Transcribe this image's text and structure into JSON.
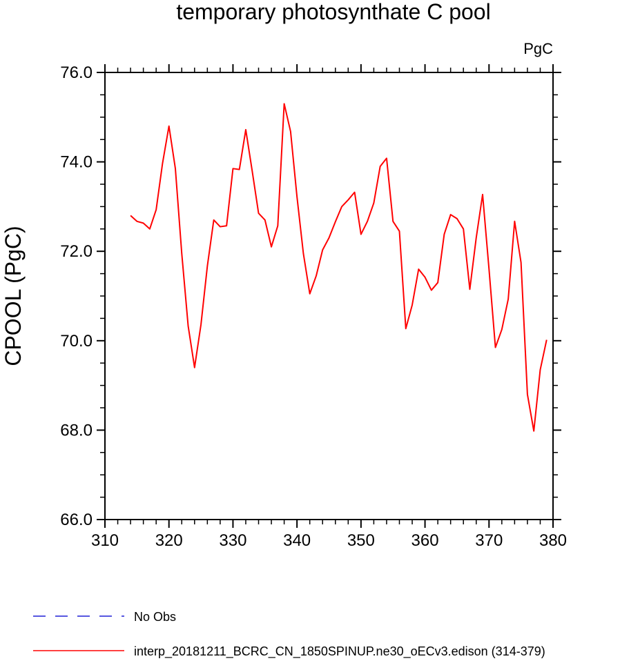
{
  "chart_data": {
    "type": "line",
    "title": "temporary photosynthate C pool",
    "units": "PgC",
    "ylabel": "CPOOL  (PgC)",
    "xlabel": "",
    "xlim": [
      310,
      380
    ],
    "ylim": [
      66,
      76
    ],
    "x_ticks": [
      310,
      320,
      330,
      340,
      350,
      360,
      370,
      380
    ],
    "x_tick_labels": [
      "310",
      "320",
      "330",
      "340",
      "350",
      "360",
      "370",
      "380"
    ],
    "y_ticks": [
      66,
      68,
      70,
      72,
      74,
      76
    ],
    "y_tick_labels": [
      "66.0",
      "68.0",
      "70.0",
      "72.0",
      "74.0",
      "76.0"
    ],
    "grid": false,
    "legend_position": "bottom-left",
    "legend": [
      {
        "label": "No Obs",
        "color": "#1f1fd6",
        "dash": "dashed"
      },
      {
        "label": "interp_20181211_BCRC_CN_1850SPINUP.ne30_oECv3.edison (314-379)",
        "color": "#ff0000",
        "dash": "solid"
      }
    ],
    "series": [
      {
        "name": "interp_20181211_BCRC_CN_1850SPINUP.ne30_oECv3.edison (314-379)",
        "color": "#ff0000",
        "x": [
          314,
          315,
          316,
          317,
          318,
          319,
          320,
          321,
          322,
          323,
          324,
          325,
          326,
          327,
          328,
          329,
          330,
          331,
          332,
          333,
          334,
          335,
          336,
          337,
          338,
          339,
          340,
          341,
          342,
          343,
          344,
          345,
          346,
          347,
          348,
          349,
          350,
          351,
          352,
          353,
          354,
          355,
          356,
          357,
          358,
          359,
          360,
          361,
          362,
          363,
          364,
          365,
          366,
          367,
          368,
          369,
          370,
          371,
          372,
          373,
          374,
          375,
          376,
          377,
          378,
          379
        ],
        "y": [
          72.8,
          72.67,
          72.63,
          72.5,
          72.93,
          73.97,
          74.8,
          73.85,
          71.95,
          70.33,
          69.4,
          70.36,
          71.67,
          72.7,
          72.55,
          72.57,
          73.85,
          73.83,
          74.72,
          73.8,
          72.85,
          72.7,
          72.1,
          72.57,
          75.3,
          74.68,
          73.22,
          71.95,
          71.05,
          71.45,
          72.03,
          72.3,
          72.66,
          73.0,
          73.15,
          73.32,
          72.38,
          72.67,
          73.08,
          73.9,
          74.08,
          72.67,
          72.45,
          70.27,
          70.8,
          71.6,
          71.42,
          71.13,
          71.3,
          72.38,
          72.82,
          72.73,
          72.5,
          71.15,
          72.3,
          73.27,
          71.6,
          69.85,
          70.25,
          70.93,
          72.67,
          71.75,
          68.8,
          67.98,
          69.35,
          70.02
        ]
      }
    ]
  }
}
